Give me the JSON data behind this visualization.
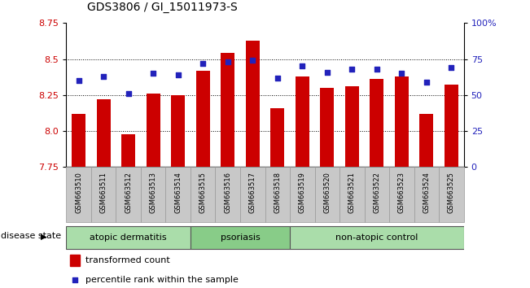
{
  "title": "GDS3806 / GI_15011973-S",
  "samples": [
    "GSM663510",
    "GSM663511",
    "GSM663512",
    "GSM663513",
    "GSM663514",
    "GSM663515",
    "GSM663516",
    "GSM663517",
    "GSM663518",
    "GSM663519",
    "GSM663520",
    "GSM663521",
    "GSM663522",
    "GSM663523",
    "GSM663524",
    "GSM663525"
  ],
  "bar_values": [
    8.12,
    8.22,
    7.98,
    8.26,
    8.25,
    8.42,
    8.54,
    8.63,
    8.16,
    8.38,
    8.3,
    8.31,
    8.36,
    8.38,
    8.12,
    8.32
  ],
  "percentile_values": [
    60,
    63,
    51,
    65,
    64,
    72,
    73,
    74,
    62,
    70,
    66,
    68,
    68,
    65,
    59,
    69
  ],
  "ylim_left": [
    7.75,
    8.75
  ],
  "ylim_right": [
    0,
    100
  ],
  "yticks_left": [
    7.75,
    8.0,
    8.25,
    8.5,
    8.75
  ],
  "yticks_right": [
    0,
    25,
    50,
    75,
    100
  ],
  "ytick_right_labels": [
    "0",
    "25",
    "50",
    "75",
    "100%"
  ],
  "bar_color": "#CC0000",
  "percentile_color": "#2222BB",
  "bar_bottom": 7.75,
  "groups": [
    {
      "label": "atopic dermatitis",
      "start": 0,
      "end": 5,
      "color": "#AADDAA"
    },
    {
      "label": "psoriasis",
      "start": 5,
      "end": 9,
      "color": "#88CC88"
    },
    {
      "label": "non-atopic control",
      "start": 9,
      "end": 16,
      "color": "#AADDAA"
    }
  ],
  "disease_state_label": "disease state",
  "legend_bar_label": "transformed count",
  "legend_pct_label": "percentile rank within the sample",
  "tick_label_color_left": "#CC0000",
  "tick_label_color_right": "#2222BB",
  "xticklabel_bg": "#C8C8C8",
  "xticklabel_edge": "#999999"
}
